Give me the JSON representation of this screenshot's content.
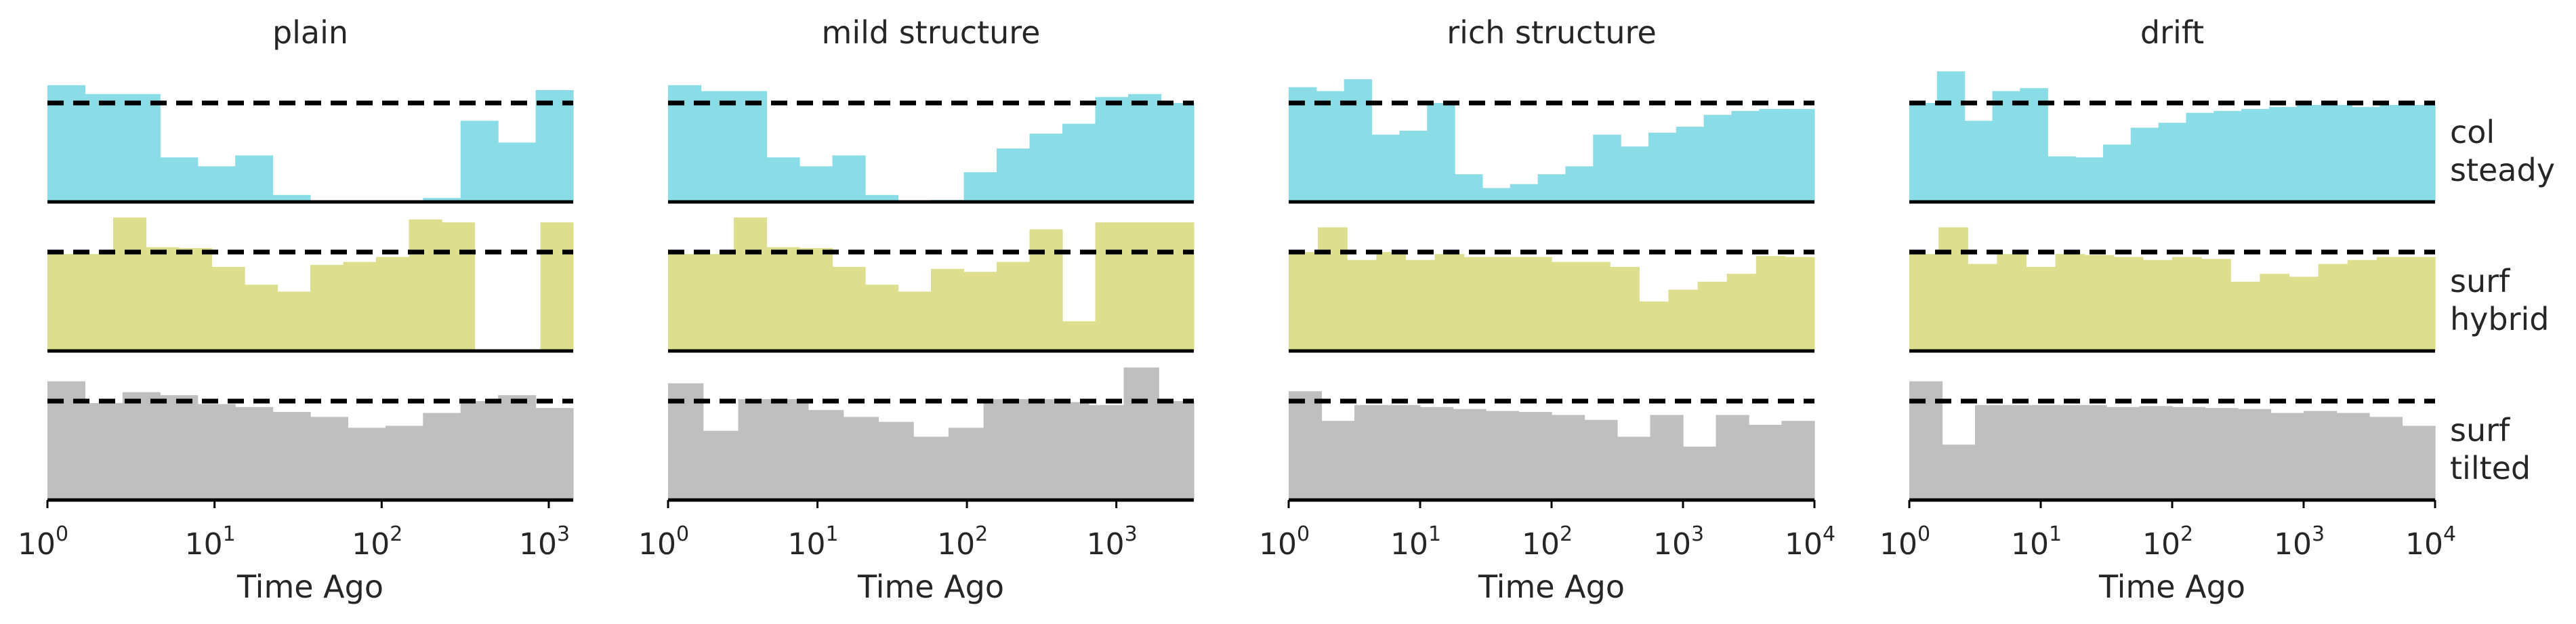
{
  "figure": {
    "xlabel": "Time Ago",
    "row_labels": [
      [
        "col",
        "steady"
      ],
      [
        "surf",
        "hybrid"
      ],
      [
        "surf",
        "tilted"
      ]
    ]
  },
  "chart_data": [
    {
      "type": "histogram",
      "title": "plain",
      "xlabel": "Time Ago",
      "xscale": "log",
      "xlim": [
        1,
        1400
      ],
      "xticks": [
        {
          "base": "10",
          "exp": "0"
        },
        {
          "base": "10",
          "exp": "1"
        },
        {
          "base": "10",
          "exp": "2"
        },
        {
          "base": "10",
          "exp": "3"
        }
      ],
      "reference_line": 1.0,
      "rows": [
        {
          "label": "col steady",
          "color": "#8adde6",
          "values": [
            1.18,
            1.09,
            1.09,
            0.45,
            0.36,
            0.47,
            0.07,
            0.0,
            0.0,
            0.0,
            0.04,
            0.82,
            0.6,
            1.13
          ]
        },
        {
          "label": "surf hybrid",
          "color": "#dedf8e",
          "values": [
            0.98,
            0.98,
            1.35,
            1.05,
            1.04,
            0.85,
            0.67,
            0.6,
            0.87,
            0.9,
            0.95,
            1.33,
            1.3,
            0.0,
            0.0,
            1.3
          ]
        },
        {
          "label": "surf tilted",
          "color": "#bfbfbf",
          "values": [
            1.2,
            0.98,
            1.09,
            1.06,
            0.97,
            0.94,
            0.89,
            0.84,
            0.73,
            0.75,
            0.88,
            1.0,
            1.06,
            0.93
          ]
        }
      ]
    },
    {
      "type": "histogram",
      "title": "mild structure",
      "xlabel": "Time Ago",
      "xscale": "log",
      "xlim": [
        1,
        3300
      ],
      "xticks": [
        {
          "base": "10",
          "exp": "0"
        },
        {
          "base": "10",
          "exp": "1"
        },
        {
          "base": "10",
          "exp": "2"
        },
        {
          "base": "10",
          "exp": "3"
        }
      ],
      "reference_line": 1.0,
      "rows": [
        {
          "label": "col steady",
          "color": "#8adde6",
          "values": [
            1.18,
            1.12,
            1.12,
            0.45,
            0.36,
            0.47,
            0.07,
            0.0,
            0.02,
            0.3,
            0.54,
            0.69,
            0.79,
            1.06,
            1.09,
            1.0
          ]
        },
        {
          "label": "surf hybrid",
          "color": "#dedf8e",
          "values": [
            0.98,
            0.98,
            1.35,
            1.05,
            1.04,
            0.85,
            0.67,
            0.6,
            0.83,
            0.8,
            0.9,
            1.23,
            0.3,
            1.3,
            1.3,
            1.3
          ]
        },
        {
          "label": "surf tilted",
          "color": "#bfbfbf",
          "values": [
            1.18,
            0.7,
            1.02,
            1.02,
            0.91,
            0.84,
            0.79,
            0.64,
            0.73,
            1.02,
            1.02,
            0.99,
            0.96,
            1.34,
            1.0
          ]
        }
      ]
    },
    {
      "type": "histogram",
      "title": "rich structure",
      "xlabel": "Time Ago",
      "xscale": "log",
      "xlim": [
        1,
        10000
      ],
      "xticks": [
        {
          "base": "10",
          "exp": "0"
        },
        {
          "base": "10",
          "exp": "1"
        },
        {
          "base": "10",
          "exp": "2"
        },
        {
          "base": "10",
          "exp": "3"
        },
        {
          "base": "10",
          "exp": "4"
        }
      ],
      "reference_line": 1.0,
      "rows": [
        {
          "label": "col steady",
          "color": "#8adde6",
          "values": [
            1.16,
            1.12,
            1.24,
            0.68,
            0.72,
            1.0,
            0.28,
            0.14,
            0.18,
            0.28,
            0.36,
            0.68,
            0.56,
            0.7,
            0.76,
            0.88,
            0.92,
            0.94,
            0.94
          ]
        },
        {
          "label": "surf hybrid",
          "color": "#dedf8e",
          "values": [
            1.0,
            1.25,
            0.92,
            1.0,
            0.92,
            0.98,
            0.95,
            0.95,
            0.95,
            0.9,
            0.9,
            0.85,
            0.5,
            0.62,
            0.7,
            0.78,
            0.96,
            0.95
          ]
        },
        {
          "label": "surf tilted",
          "color": "#bfbfbf",
          "values": [
            1.1,
            0.8,
            0.96,
            0.96,
            0.94,
            0.92,
            0.9,
            0.89,
            0.86,
            0.81,
            0.64,
            0.86,
            0.54,
            0.86,
            0.76,
            0.8
          ]
        }
      ]
    },
    {
      "type": "histogram",
      "title": "drift",
      "xlabel": "Time Ago",
      "xscale": "log",
      "xlim": [
        1,
        10000
      ],
      "xticks": [
        {
          "base": "10",
          "exp": "0"
        },
        {
          "base": "10",
          "exp": "1"
        },
        {
          "base": "10",
          "exp": "2"
        },
        {
          "base": "10",
          "exp": "3"
        },
        {
          "base": "10",
          "exp": "4"
        }
      ],
      "reference_line": 1.0,
      "rows": [
        {
          "label": "col steady",
          "color": "#8adde6",
          "values": [
            1.0,
            1.32,
            0.82,
            1.12,
            1.15,
            0.46,
            0.45,
            0.58,
            0.75,
            0.8,
            0.9,
            0.92,
            0.94,
            0.96,
            0.98,
            0.98,
            0.96,
            0.98,
            0.98
          ]
        },
        {
          "label": "surf hybrid",
          "color": "#dedf8e",
          "values": [
            0.98,
            1.25,
            0.88,
            0.98,
            0.85,
            0.98,
            0.97,
            0.95,
            0.92,
            0.95,
            0.93,
            0.7,
            0.78,
            0.75,
            0.88,
            0.92,
            0.95,
            0.95
          ]
        },
        {
          "label": "surf tilted",
          "color": "#bfbfbf",
          "values": [
            1.2,
            0.56,
            0.96,
            0.96,
            0.96,
            0.96,
            0.94,
            0.95,
            0.94,
            0.93,
            0.92,
            0.88,
            0.9,
            0.88,
            0.84,
            0.75
          ]
        }
      ]
    }
  ]
}
